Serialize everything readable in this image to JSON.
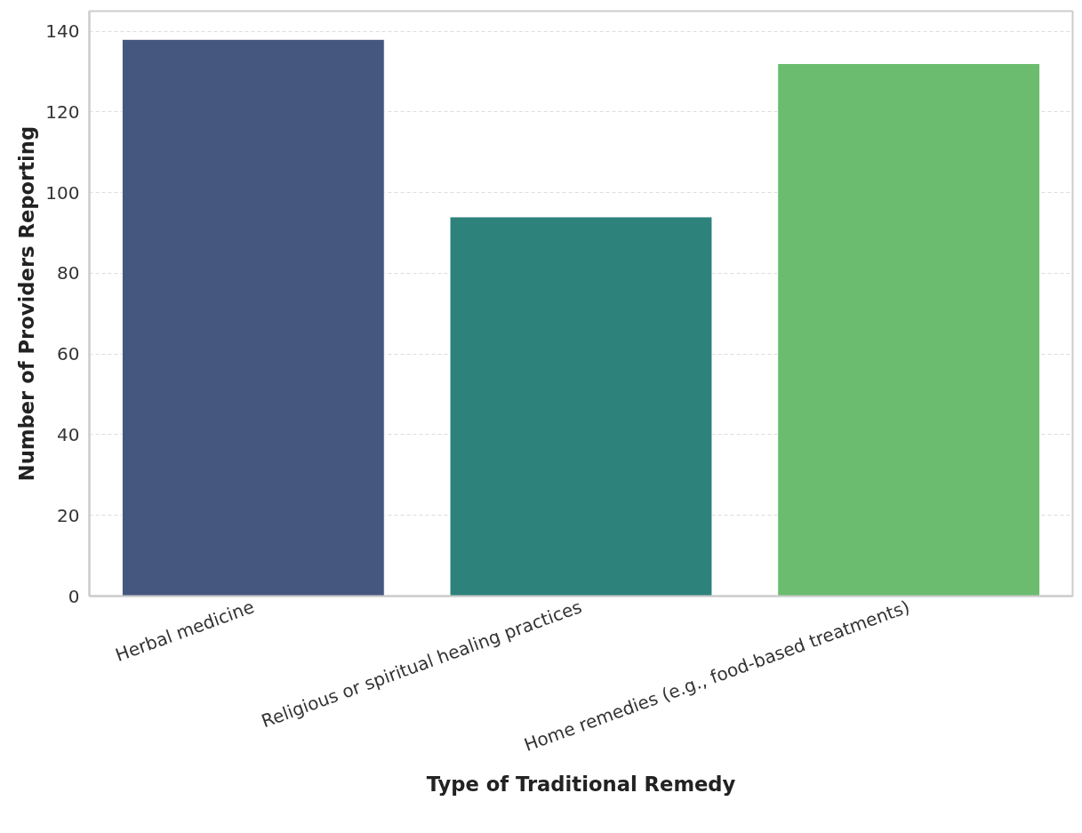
{
  "chart_data": {
    "type": "bar",
    "xlabel": "Type of Traditional Remedy",
    "ylabel": "Number of Providers Reporting",
    "categories": [
      "Herbal medicine",
      "Religious or spiritual healing practices",
      "Home remedies (e.g., food-based treatments)"
    ],
    "values": [
      138,
      94,
      132
    ],
    "colors": [
      "#46577f",
      "#2e827c",
      "#6bbc6e"
    ],
    "ylim": [
      0,
      145
    ],
    "yticks": [
      0,
      20,
      40,
      60,
      80,
      100,
      120,
      140
    ],
    "grid": "y"
  }
}
